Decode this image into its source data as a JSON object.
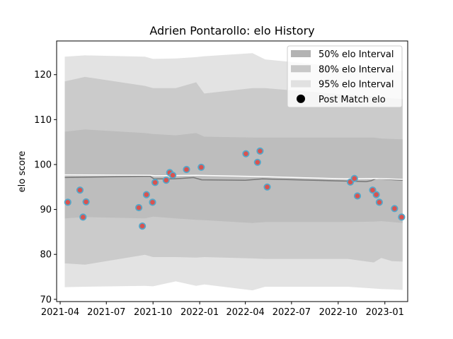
{
  "chart_data": {
    "type": "area",
    "title": "Adrien Pontarollo: elo History",
    "xlabel": "",
    "ylabel": "elo score",
    "xlim": [
      "2021-03-25",
      "2023-02-15"
    ],
    "ylim": [
      69.5,
      127.5
    ],
    "x_ticks": [
      "2021-04",
      "2021-07",
      "2021-10",
      "2022-01",
      "2022-04",
      "2022-07",
      "2022-10",
      "2023-01"
    ],
    "y_ticks": [
      70,
      80,
      90,
      100,
      110,
      120
    ],
    "grid": false,
    "legend_position": "top-right",
    "colors": {
      "band_95": "#e3e3e3",
      "band_80": "#cbcbcb",
      "band_50": "#bdbdbd",
      "mean_line": "#777777",
      "pre_line": "#ffffff",
      "marker_fill": "#d9534f",
      "marker_edge": "#55a7c9"
    },
    "legend": [
      {
        "label": "50% elo Interval",
        "kind": "band",
        "color": "#b3b3b3"
      },
      {
        "label": "80% elo Interval",
        "kind": "band",
        "color": "#c8c8c8"
      },
      {
        "label": "95% elo Interval",
        "kind": "band",
        "color": "#e1e1e1"
      },
      {
        "label": "Post Match elo",
        "kind": "marker",
        "color": "#000000"
      }
    ],
    "bands": {
      "dates": [
        "2021-04-10",
        "2021-05-20",
        "2021-09-15",
        "2021-10-01",
        "2021-11-15",
        "2021-12-25",
        "2022-01-10",
        "2022-04-15",
        "2022-05-10",
        "2022-10-20",
        "2022-12-10",
        "2022-12-25",
        "2023-01-15",
        "2023-02-05"
      ],
      "p95_upper": [
        124,
        124.3,
        124,
        123.5,
        123.6,
        123.9,
        124.1,
        124.8,
        123.4,
        121.6,
        121.5,
        121.2,
        121,
        120.9
      ],
      "p80_upper": [
        118.5,
        119.5,
        117.5,
        117,
        117,
        118.3,
        115.8,
        117,
        117,
        115.5,
        115.2,
        115,
        114.7,
        114.6
      ],
      "p50_upper": [
        107.3,
        107.8,
        107,
        106.8,
        106.5,
        107,
        106.2,
        106,
        106,
        106,
        106,
        105.8,
        105.7,
        105.6
      ],
      "p50_lower": [
        88,
        88.3,
        88,
        88.4,
        88,
        87.7,
        87.6,
        87,
        87.2,
        87.2,
        87.3,
        87.4,
        87.2,
        87
      ],
      "p80_lower": [
        78,
        77.7,
        79.9,
        79.4,
        79.4,
        79.3,
        79.4,
        79.1,
        79,
        79,
        78.2,
        79.2,
        78.5,
        78.4
      ],
      "p95_lower": [
        72.7,
        72.8,
        73,
        72.9,
        74,
        73,
        73.3,
        72,
        72.8,
        72.8,
        72.4,
        72.3,
        72.2,
        72.1
      ]
    },
    "mean_line": {
      "dates": [
        "2021-04-10",
        "2021-06-01",
        "2021-09-25",
        "2021-10-03",
        "2021-11-10",
        "2021-12-20",
        "2022-01-05",
        "2022-04-01",
        "2022-05-05",
        "2022-10-20",
        "2022-11-25",
        "2022-12-05",
        "2022-12-15",
        "2023-01-20",
        "2023-02-05"
      ],
      "values": [
        97.1,
        97.2,
        97.4,
        96.8,
        96.8,
        97.1,
        96.6,
        96.5,
        96.8,
        96.3,
        96.2,
        96.4,
        96.9,
        96.6,
        96.5
      ]
    },
    "pre_match_line": {
      "dates": [
        "2021-04-10",
        "2021-09-25",
        "2021-10-05",
        "2021-12-25",
        "2022-05-05",
        "2022-10-15",
        "2022-12-15",
        "2023-02-05"
      ],
      "values": [
        97.7,
        97.6,
        97.5,
        97.6,
        97.3,
        96.8,
        96.9,
        96.7
      ]
    },
    "series": [
      {
        "name": "Post Match elo",
        "dates": [
          "2021-04-16",
          "2021-05-10",
          "2021-05-16",
          "2021-05-22",
          "2021-09-03",
          "2021-09-10",
          "2021-09-18",
          "2021-09-30",
          "2021-10-05",
          "2021-10-27",
          "2021-11-03",
          "2021-11-09",
          "2021-12-06",
          "2022-01-04",
          "2022-04-02",
          "2022-04-25",
          "2022-04-30",
          "2022-05-14",
          "2022-10-25",
          "2022-11-02",
          "2022-11-08",
          "2022-12-08",
          "2022-12-15",
          "2022-12-21",
          "2023-01-20",
          "2023-02-03"
        ],
        "values": [
          91.6,
          94.3,
          88.3,
          91.7,
          90.4,
          86.3,
          93.3,
          91.6,
          96,
          96.5,
          98.2,
          97.6,
          98.9,
          99.4,
          102.4,
          100.5,
          103,
          95,
          96.1,
          96.9,
          93,
          94.3,
          93.3,
          91.6,
          90.2,
          88.3
        ]
      }
    ]
  }
}
